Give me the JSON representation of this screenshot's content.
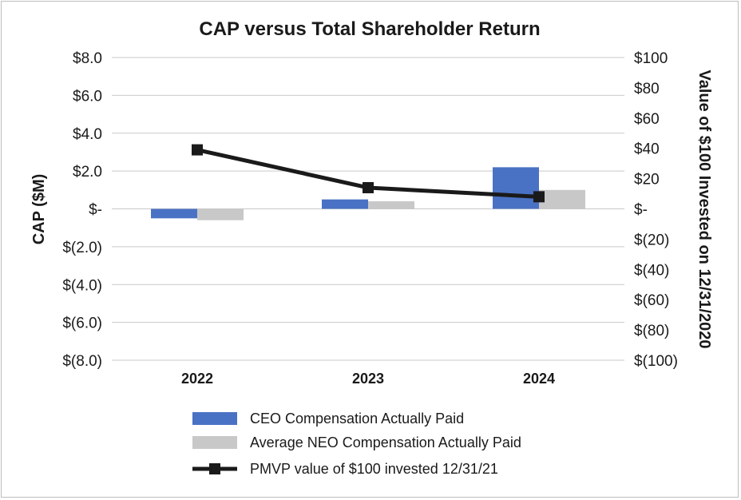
{
  "chart_data": {
    "type": "bar",
    "title": "CAP versus Total Shareholder Return",
    "categories": [
      "2022",
      "2023",
      "2024"
    ],
    "ylabel": "CAP ($M)",
    "y2label": "Value of $100 Invested on 12/31/2020",
    "ylim": [
      -8,
      8
    ],
    "y2lim": [
      -100,
      100
    ],
    "yticks": [
      8,
      6,
      4,
      2,
      0,
      -2,
      -4,
      -6,
      -8
    ],
    "ytick_labels": [
      "$8.0",
      "$6.0",
      "$4.0",
      "$2.0",
      "$-",
      "$(2.0)",
      "$(4.0)",
      "$(6.0)",
      "$(8.0)"
    ],
    "y2ticks": [
      100,
      80,
      60,
      40,
      20,
      0,
      -20,
      -40,
      -60,
      -80,
      -100
    ],
    "y2tick_labels": [
      "$100",
      "$80",
      "$60",
      "$40",
      "$20",
      "$-",
      "$(20)",
      "$(40)",
      "$(60)",
      "$(80)",
      "$(100)"
    ],
    "grid": true,
    "legend_position": "bottom",
    "series": [
      {
        "name": "CEO Compensation Actually Paid",
        "kind": "bar",
        "axis": "left",
        "color": "#4a72c4",
        "values": [
          -0.5,
          0.5,
          2.2
        ]
      },
      {
        "name": "Average NEO Compensation Actually Paid",
        "kind": "bar",
        "axis": "left",
        "color": "#c8c8c8",
        "values": [
          -0.6,
          0.4,
          1.0
        ]
      },
      {
        "name": "PMVP value of $100 invested 12/31/21",
        "kind": "line",
        "axis": "right",
        "color": "#1a1a1a",
        "values": [
          39,
          14,
          8
        ]
      }
    ]
  }
}
